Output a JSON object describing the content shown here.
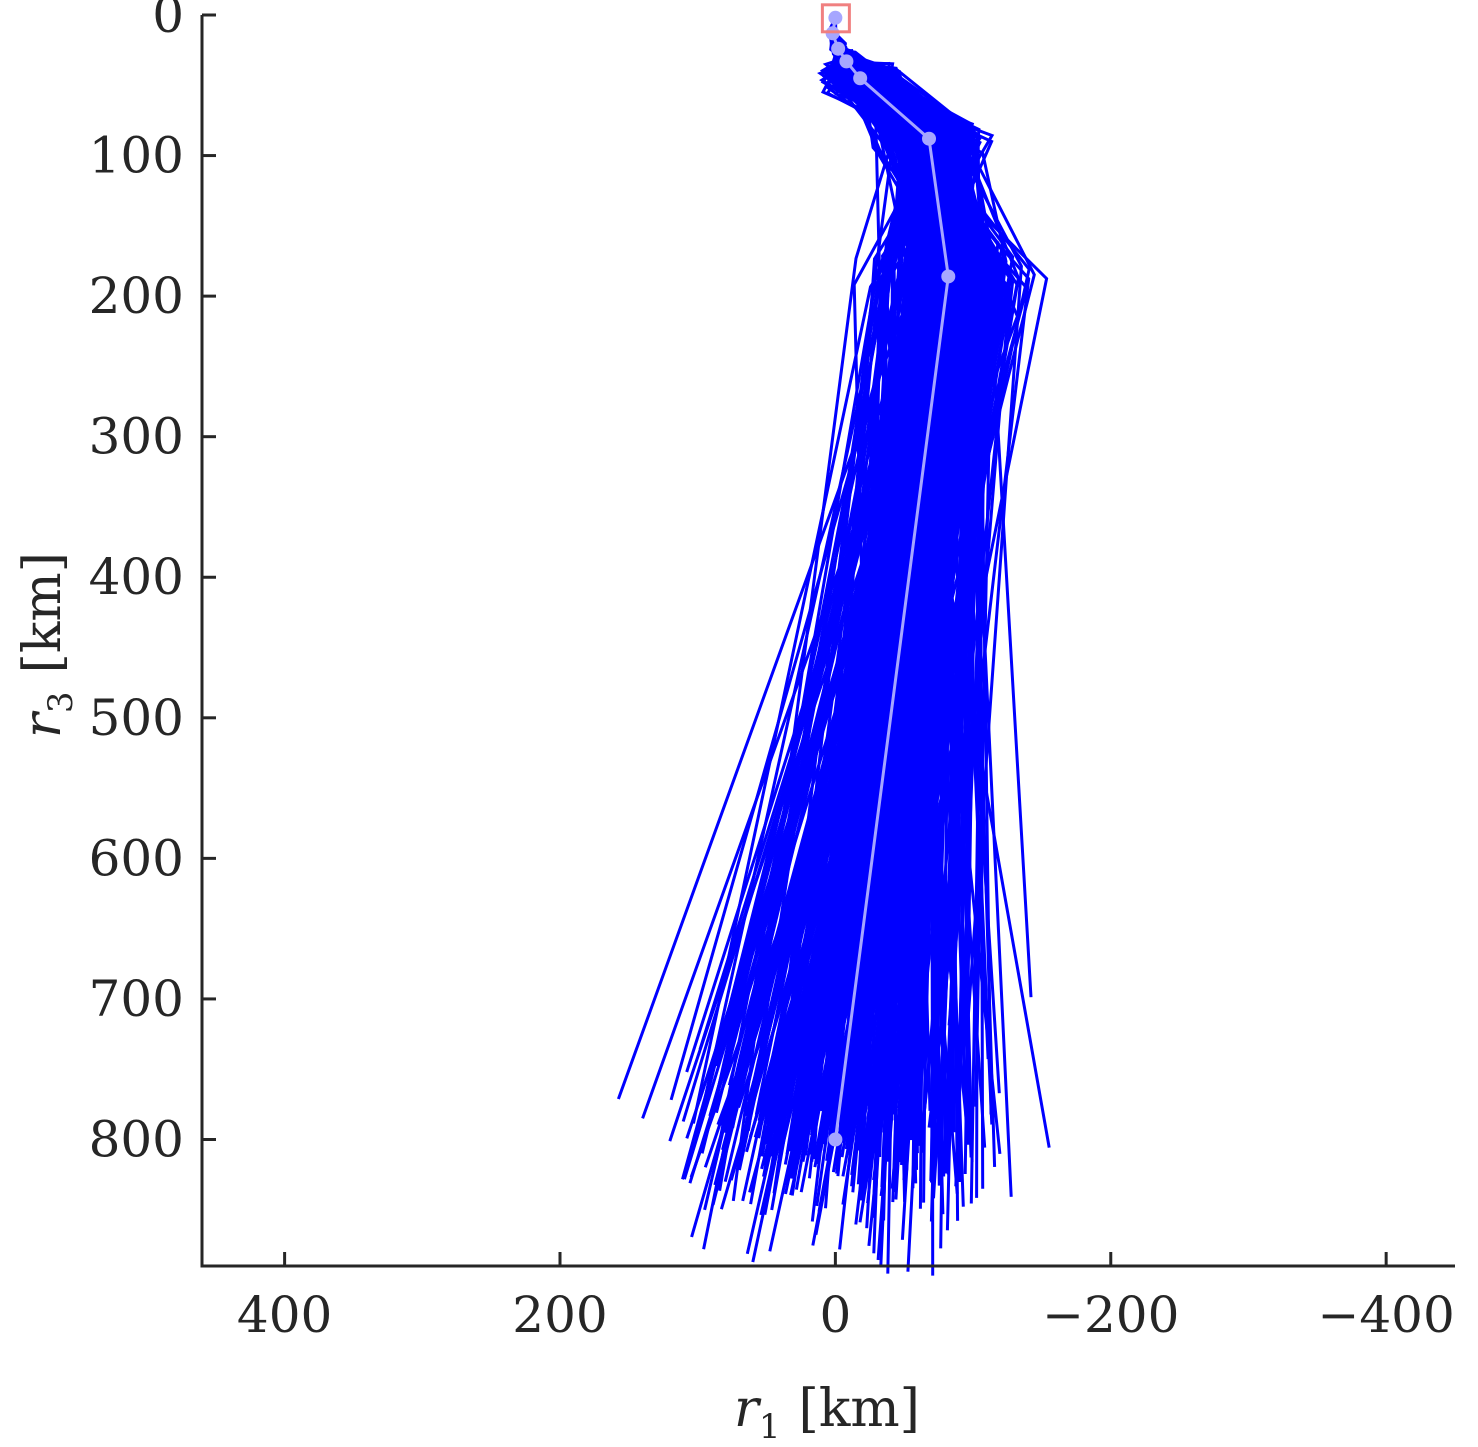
{
  "chart_data": {
    "type": "line",
    "title": "",
    "xlabel_var": "r",
    "xlabel_sub": "1",
    "xlabel_unit": "[km]",
    "ylabel_var": "r",
    "ylabel_sub": "3",
    "ylabel_unit": "[km]",
    "xlim": [
      460,
      -450
    ],
    "ylim": [
      890,
      0
    ],
    "x_reversed": true,
    "y_reversed": true,
    "grid": false,
    "x_ticks": [
      400,
      200,
      0,
      -200,
      -400
    ],
    "x_tick_labels": [
      "400",
      "200",
      "0",
      "−200",
      "−400"
    ],
    "y_ticks": [
      0,
      100,
      200,
      300,
      400,
      500,
      600,
      700,
      800
    ],
    "y_tick_labels": [
      "0",
      "100",
      "200",
      "300",
      "400",
      "500",
      "600",
      "700",
      "800"
    ],
    "colors": {
      "ensemble": "#0000ff",
      "mean": "#a6a6ff",
      "start_box": "#f08080",
      "axis": "#262626"
    },
    "ensemble": {
      "name": "",
      "count": 400,
      "mean_path": [
        [
          0,
          2
        ],
        [
          2,
          13
        ],
        [
          -2,
          24
        ],
        [
          -8,
          33
        ],
        [
          -18,
          45
        ],
        [
          -68,
          88
        ],
        [
          -82,
          186
        ],
        [
          0,
          800
        ]
      ],
      "spread_r1": [
        0,
        1,
        2,
        4,
        12,
        18,
        25,
        60
      ],
      "spread_r3": [
        0,
        1,
        2,
        3,
        5,
        6,
        12,
        35
      ]
    },
    "mean_trajectory": {
      "name": "",
      "points": [
        [
          0,
          2
        ],
        [
          2,
          13
        ],
        [
          -2,
          24
        ],
        [
          -8,
          33
        ],
        [
          -18,
          45
        ],
        [
          -68,
          88
        ],
        [
          -82,
          186
        ],
        [
          0,
          800
        ]
      ]
    },
    "outliers": [
      [
        [
          0,
          2
        ],
        [
          2,
          13
        ],
        [
          -2,
          24
        ],
        [
          -8,
          33
        ],
        [
          -18,
          45
        ],
        [
          -55,
          78
        ],
        [
          -60,
          110
        ],
        [
          -55,
          250
        ],
        [
          140,
          785
        ]
      ],
      [
        [
          0,
          2
        ],
        [
          2,
          13
        ],
        [
          -2,
          24
        ],
        [
          -8,
          33
        ],
        [
          -18,
          45
        ],
        [
          -60,
          82
        ],
        [
          -62,
          120
        ],
        [
          -58,
          240
        ],
        [
          108,
          752
        ]
      ],
      [
        [
          0,
          2
        ],
        [
          2,
          13
        ],
        [
          -2,
          24
        ],
        [
          -8,
          33
        ],
        [
          -18,
          45
        ],
        [
          -65,
          85
        ],
        [
          -70,
          130
        ],
        [
          -60,
          260
        ],
        [
          92,
          790
        ]
      ],
      [
        [
          0,
          2
        ],
        [
          2,
          13
        ],
        [
          -2,
          24
        ],
        [
          -8,
          33
        ],
        [
          -18,
          45
        ],
        [
          -70,
          86
        ],
        [
          -75,
          140
        ],
        [
          -65,
          270
        ],
        [
          74,
          775
        ]
      ],
      [
        [
          0,
          2
        ],
        [
          2,
          13
        ],
        [
          -2,
          24
        ],
        [
          -8,
          33
        ],
        [
          -18,
          45
        ],
        [
          -80,
          90
        ],
        [
          -95,
          175
        ],
        [
          -105,
          200
        ],
        [
          -107,
          835
        ]
      ],
      [
        [
          0,
          2
        ],
        [
          2,
          13
        ],
        [
          -2,
          24
        ],
        [
          -8,
          33
        ],
        [
          -18,
          45
        ],
        [
          -85,
          92
        ],
        [
          -105,
          150
        ],
        [
          -118,
          162
        ],
        [
          -100,
          350
        ],
        [
          -93,
          758
        ]
      ],
      [
        [
          0,
          2
        ],
        [
          2,
          13
        ],
        [
          -2,
          24
        ],
        [
          -8,
          33
        ],
        [
          -18,
          45
        ],
        [
          -82,
          88
        ],
        [
          -100,
          160
        ],
        [
          -108,
          210
        ],
        [
          -95,
          400
        ],
        [
          -82,
          825
        ]
      ],
      [
        [
          0,
          2
        ],
        [
          2,
          13
        ],
        [
          -2,
          24
        ],
        [
          -8,
          33
        ],
        [
          -18,
          45
        ],
        [
          -75,
          86
        ],
        [
          -88,
          120
        ],
        [
          -100,
          200
        ],
        [
          -98,
          420
        ],
        [
          -88,
          818
        ]
      ],
      [
        [
          0,
          2
        ],
        [
          2,
          13
        ],
        [
          -2,
          24
        ],
        [
          -8,
          33
        ],
        [
          -18,
          45
        ],
        [
          -60,
          84
        ],
        [
          -62,
          140
        ],
        [
          -58,
          260
        ],
        [
          80,
          830
        ]
      ],
      [
        [
          0,
          2
        ],
        [
          2,
          13
        ],
        [
          -2,
          24
        ],
        [
          -8,
          33
        ],
        [
          -18,
          45
        ],
        [
          -62,
          86
        ],
        [
          -66,
          150
        ],
        [
          -60,
          300
        ],
        [
          -33,
          890
        ]
      ]
    ]
  }
}
